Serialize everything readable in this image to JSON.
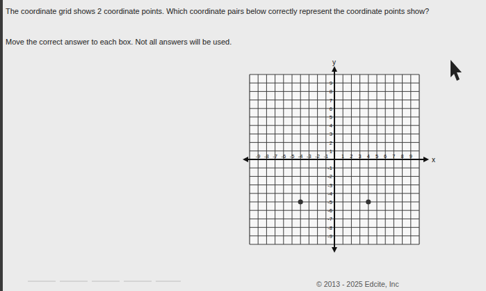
{
  "question": "The coordinate grid shows 2 coordinate points. Which coordinate pairs below correctly represent the coordinate points show?",
  "instruction": "Move the correct answer to each box. Not all answers will be used.",
  "footer": "© 2013 - 2025 Edcite, Inc",
  "chart_data": {
    "type": "scatter",
    "x_label": "x",
    "y_label": "y",
    "x": [
      -4,
      4
    ],
    "values": [
      -5,
      -5
    ],
    "color": "#333333",
    "marker": "circle",
    "xlim": [
      -10,
      10
    ],
    "ylim": [
      -10,
      10
    ],
    "xticks": [
      -9,
      -8,
      -7,
      -6,
      -5,
      -4,
      -3,
      -2,
      -1,
      1,
      2,
      3,
      4,
      5,
      6,
      7,
      8,
      9
    ],
    "yticks": [
      -9,
      -8,
      -7,
      -6,
      -5,
      -4,
      -3,
      -2,
      -1,
      1,
      2,
      3,
      4,
      5,
      6,
      7,
      8,
      9
    ],
    "grid": true
  }
}
